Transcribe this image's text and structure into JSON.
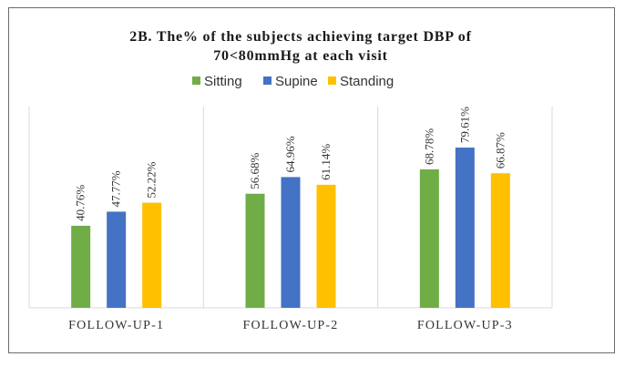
{
  "chart_data": {
    "type": "bar",
    "title_line1": "2B. The% of the subjects achieving target DBP of",
    "title_line2": "70<80mmHg at each visit",
    "xlabel": "",
    "ylabel": "",
    "ylim": [
      0,
      100
    ],
    "grid": "vertical-separators",
    "legend_position": "top-center",
    "categories": [
      "FOLLOW-UP-1",
      "FOLLOW-UP-2",
      "FOLLOW-UP-3"
    ],
    "series": [
      {
        "name": "Sitting",
        "color": "#70ad47",
        "values": [
          40.76,
          56.68,
          68.78
        ],
        "labels": [
          "40.76%",
          "56.68%",
          "68.78%"
        ]
      },
      {
        "name": "Supine",
        "color": "#4472c4",
        "values": [
          47.77,
          64.96,
          79.61
        ],
        "labels": [
          "47.77%",
          "64.96%",
          "79.61%"
        ]
      },
      {
        "name": "Standing",
        "color": "#ffc000",
        "values": [
          52.22,
          61.14,
          66.87
        ],
        "labels": [
          "52.22%",
          "61.14%",
          "66.87%"
        ]
      }
    ]
  }
}
